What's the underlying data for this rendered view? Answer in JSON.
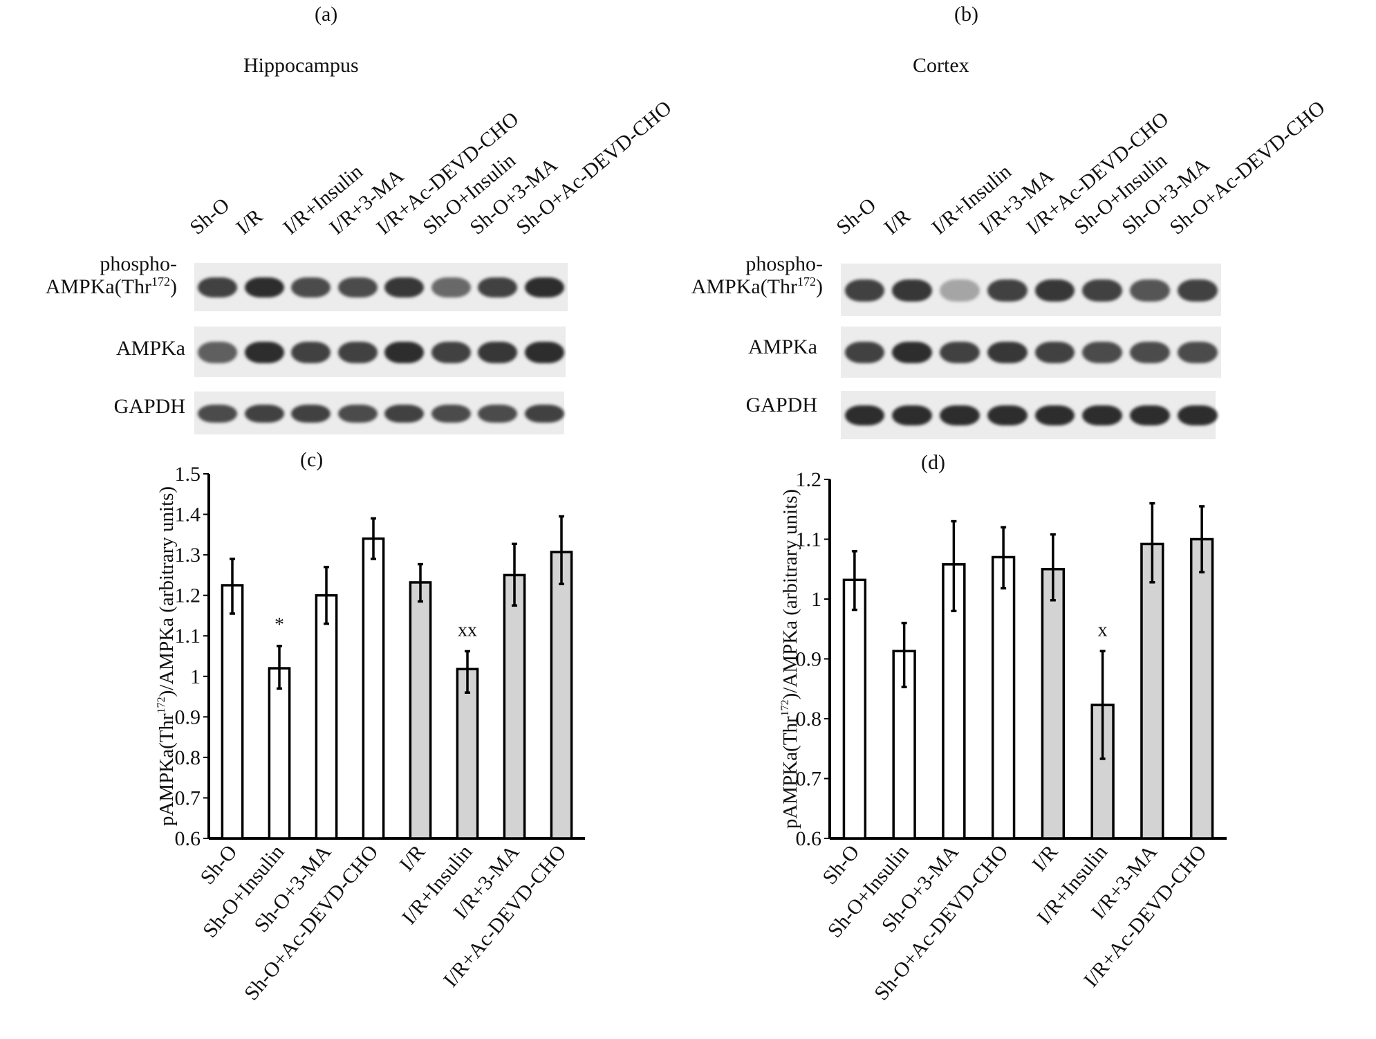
{
  "panels": {
    "a": {
      "letter": "(a)",
      "title": "Hippocampus"
    },
    "b": {
      "letter": "(b)",
      "title": "Cortex"
    },
    "c": {
      "letter": "(c)"
    },
    "d": {
      "letter": "(d)"
    }
  },
  "blot_lanes": [
    "Sh-O",
    "I/R",
    "I/R+Insulin",
    "I/R+3-MA",
    "I/R+Ac-DEVD-CHO",
    "Sh-O+Insulin",
    "Sh-O+3-MA",
    "Sh-O+Ac-DEVD-CHO"
  ],
  "blot_rows": {
    "phospho_line1": "phospho-",
    "phospho_line2": "AMPKa(Thr",
    "phospho_sup": "172",
    "phospho_close": ")",
    "ampk": "AMPKa",
    "gapdh": "GAPDH"
  },
  "band_intensity": {
    "a": {
      "phospho": [
        0.85,
        0.95,
        0.8,
        0.8,
        0.9,
        0.65,
        0.85,
        0.95
      ],
      "ampk": [
        0.7,
        0.95,
        0.85,
        0.85,
        0.95,
        0.85,
        0.9,
        0.95
      ],
      "gapdh": [
        0.8,
        0.85,
        0.85,
        0.8,
        0.85,
        0.8,
        0.8,
        0.85
      ]
    },
    "b": {
      "phospho": [
        0.85,
        0.9,
        0.35,
        0.85,
        0.9,
        0.85,
        0.75,
        0.85
      ],
      "ampk": [
        0.85,
        0.95,
        0.85,
        0.9,
        0.85,
        0.8,
        0.8,
        0.8
      ],
      "gapdh": [
        0.95,
        0.95,
        0.95,
        0.95,
        0.95,
        0.95,
        0.95,
        0.95
      ]
    }
  },
  "chart_data": [
    {
      "type": "bar",
      "panel": "c",
      "categories": [
        "Sh-O",
        "Sh-O+Insulin",
        "Sh-O+3-MA",
        "Sh-O+Ac-DEVD-CHO",
        "I/R",
        "I/R+Insulin",
        "I/R+3-MA",
        "I/R+Ac-DEVD-CHO"
      ],
      "values": [
        1.225,
        1.02,
        1.2,
        1.34,
        1.232,
        1.018,
        1.25,
        1.307
      ],
      "err_low": [
        1.155,
        0.97,
        1.13,
        1.29,
        1.185,
        0.96,
        1.175,
        1.228
      ],
      "err_high": [
        1.29,
        1.075,
        1.27,
        1.39,
        1.277,
        1.062,
        1.327,
        1.395
      ],
      "fill": [
        "#ffffff",
        "#ffffff",
        "#ffffff",
        "#ffffff",
        "#d3d3d3",
        "#d3d3d3",
        "#d3d3d3",
        "#d3d3d3"
      ],
      "annotations": [
        "",
        "*",
        "",
        "",
        "",
        "xx",
        "",
        ""
      ],
      "ylabel_pre": "pAMPKa(Thr",
      "ylabel_sup": "172",
      "ylabel_post": ")/AMPKa (arbitrary units)",
      "ylim": [
        0.6,
        1.5
      ],
      "yticks": [
        0.6,
        0.7,
        0.8,
        0.9,
        1,
        1.1,
        1.2,
        1.3,
        1.4,
        1.5
      ],
      "ytick_labels": [
        "0.6",
        "0.7",
        "0.8",
        "0.9",
        "1",
        "1.1",
        "1.2",
        "1.3",
        "1.4",
        "1.5"
      ],
      "grid": false
    },
    {
      "type": "bar",
      "panel": "d",
      "categories": [
        "Sh-O",
        "Sh-O+Insulin",
        "Sh-O+3-MA",
        "Sh-O+Ac-DEVD-CHO",
        "I/R",
        "I/R+Insulin",
        "I/R+3-MA",
        "I/R+Ac-DEVD-CHO"
      ],
      "values": [
        1.032,
        0.913,
        1.058,
        1.07,
        1.05,
        0.823,
        1.092,
        1.1
      ],
      "err_low": [
        0.982,
        0.853,
        0.98,
        1.018,
        0.998,
        0.733,
        1.028,
        1.045
      ],
      "err_high": [
        1.08,
        0.96,
        1.13,
        1.12,
        1.108,
        0.913,
        1.16,
        1.155
      ],
      "fill": [
        "#ffffff",
        "#ffffff",
        "#ffffff",
        "#ffffff",
        "#d3d3d3",
        "#d3d3d3",
        "#d3d3d3",
        "#d3d3d3"
      ],
      "annotations": [
        "",
        "",
        "",
        "",
        "",
        "x",
        "",
        ""
      ],
      "ylabel_pre": "pAMPKa(Thr",
      "ylabel_sup": "172",
      "ylabel_post": ")/AMPKa (arbitrary units)",
      "ylim": [
        0.6,
        1.2
      ],
      "yticks": [
        0.6,
        0.7,
        0.8,
        0.9,
        1,
        1.1,
        1.2
      ],
      "ytick_labels": [
        "0.6",
        "0.7",
        "0.8",
        "0.9",
        "1",
        "1.1",
        "1.2"
      ],
      "grid": false
    }
  ]
}
